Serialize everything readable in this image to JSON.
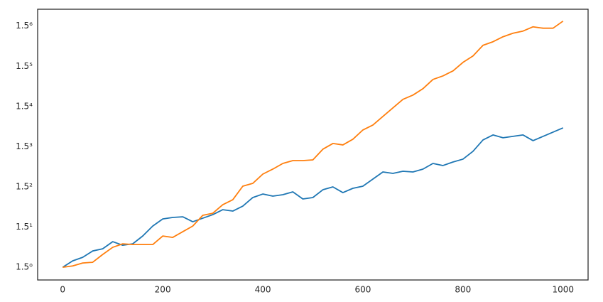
{
  "chart_data": {
    "type": "line",
    "yscale": "log",
    "grid": false,
    "x": [
      0,
      20,
      40,
      60,
      80,
      100,
      120,
      140,
      160,
      180,
      200,
      220,
      240,
      260,
      280,
      300,
      320,
      340,
      360,
      380,
      400,
      420,
      440,
      460,
      480,
      500,
      520,
      540,
      560,
      580,
      600,
      620,
      640,
      660,
      680,
      700,
      720,
      740,
      760,
      780,
      800,
      820,
      840,
      860,
      880,
      900,
      920,
      940,
      960,
      980,
      1000
    ],
    "series": [
      {
        "color": "#1f77b4",
        "values": [
          1.0,
          1.067,
          1.106,
          1.179,
          1.205,
          1.295,
          1.249,
          1.267,
          1.371,
          1.516,
          1.629,
          1.653,
          1.664,
          1.583,
          1.641,
          1.701,
          1.788,
          1.763,
          1.854,
          2.021,
          2.094,
          2.05,
          2.079,
          2.14,
          1.992,
          2.021,
          2.186,
          2.25,
          2.124,
          2.218,
          2.266,
          2.435,
          2.616,
          2.579,
          2.635,
          2.616,
          2.692,
          2.851,
          2.791,
          2.892,
          2.977,
          3.221,
          3.613,
          3.799,
          3.692,
          3.745,
          3.799,
          3.587,
          3.745,
          3.91,
          4.082
        ]
      },
      {
        "color": "#ff7f0e",
        "values": [
          1.0,
          1.014,
          1.044,
          1.052,
          1.138,
          1.223,
          1.267,
          1.258,
          1.258,
          1.258,
          1.371,
          1.352,
          1.432,
          1.516,
          1.689,
          1.725,
          1.88,
          1.977,
          2.266,
          2.332,
          2.56,
          2.692,
          2.851,
          2.934,
          2.934,
          2.955,
          3.291,
          3.486,
          3.436,
          3.639,
          3.995,
          4.201,
          4.579,
          4.991,
          5.439,
          5.679,
          6.058,
          6.65,
          6.893,
          7.248,
          7.899,
          8.426,
          9.384,
          9.727,
          10.229,
          10.602,
          10.833,
          11.309,
          11.149,
          11.149,
          11.978
        ]
      }
    ],
    "xlim": [
      -50,
      1050
    ],
    "xticks": [
      0,
      200,
      400,
      600,
      800,
      1000
    ],
    "ylim": [
      0.88,
      13.5
    ],
    "yticks": [
      {
        "value": 1,
        "label": "1.5⁰"
      },
      {
        "value": 1.5,
        "label": "1.5¹"
      },
      {
        "value": 2.25,
        "label": "1.5²"
      },
      {
        "value": 3.375,
        "label": "1.5³"
      },
      {
        "value": 5.0625,
        "label": "1.5⁴"
      },
      {
        "value": 7.59375,
        "label": "1.5⁵"
      },
      {
        "value": 11.390625,
        "label": "1.5⁶"
      }
    ]
  }
}
